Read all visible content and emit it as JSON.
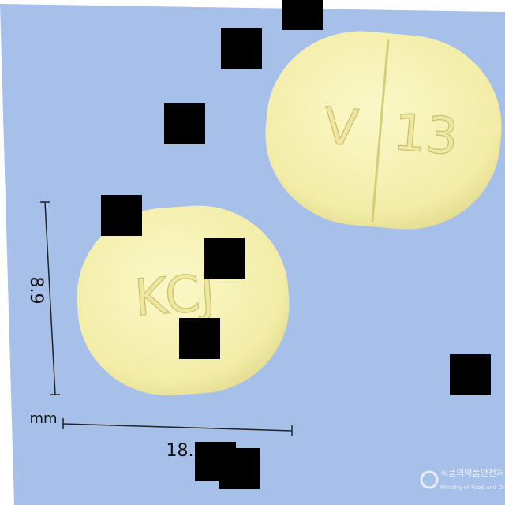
{
  "pills": [
    {
      "imprint_left": "V",
      "imprint_right": "13"
    },
    {
      "imprint": "KCJ"
    }
  ],
  "dimensions": {
    "height": "8.9",
    "unit": "mm",
    "width": "18.9"
  },
  "logo": {
    "korean": "식품의약품안전처",
    "english": "Ministry of Food and Drug Safety"
  }
}
